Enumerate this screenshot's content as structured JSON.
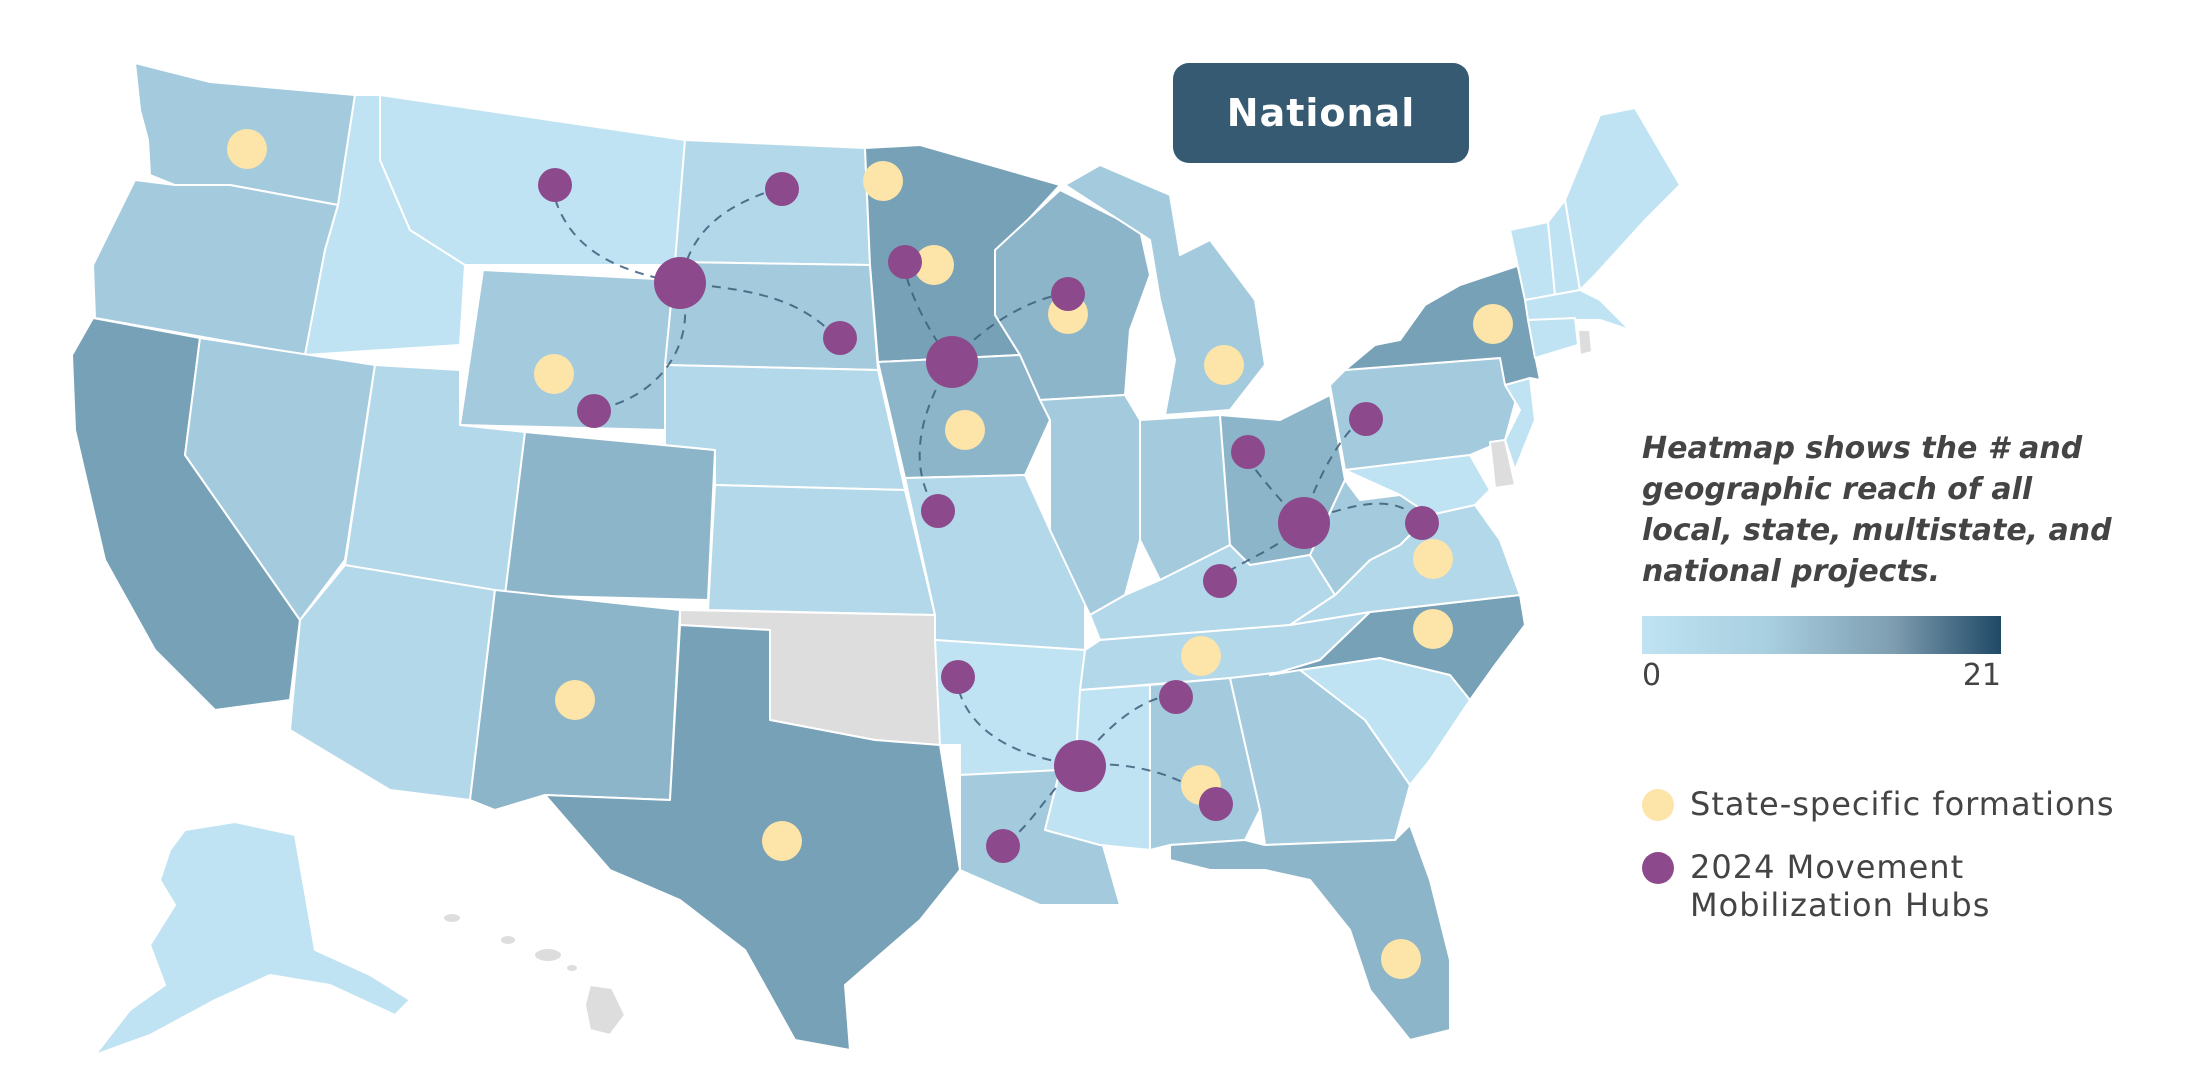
{
  "title_badge": "National",
  "legend": {
    "description": "Heatmap shows the # and geographic reach of all local, state, multistate, and national projects.",
    "scale_min": "0",
    "scale_max": "21",
    "scale_colors": [
      "#bfe3f2",
      "#1f4966"
    ],
    "state_specific_label": "State-specific formations",
    "state_specific_color": "#fde4a8",
    "hubs_label": "2024 Movement Mobilization Hubs",
    "hubs_color": "#8c4a8c"
  },
  "colors": {
    "no_data": "#dddddd",
    "level_1": "#bfe3f2",
    "level_2": "#b3d8e9",
    "level_3": "#a4cade",
    "level_4": "#8db5c9",
    "level_5": "#76a1b7",
    "route": "#3d5e7a"
  }
}
